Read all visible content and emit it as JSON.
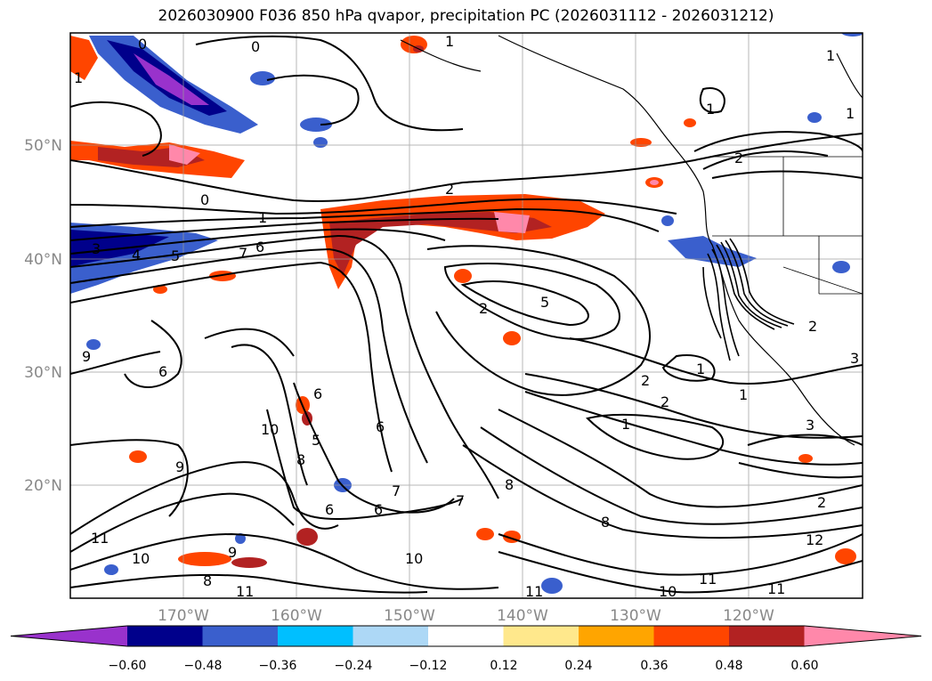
{
  "title": "2026030900 F036 850 hPa qvapor, precipitation PC (2026031112 - 2026031212)",
  "lat_ticks": [
    "50°N",
    "40°N",
    "30°N",
    "20°N"
  ],
  "lon_ticks": [
    "170°W",
    "160°W",
    "150°W",
    "140°W",
    "130°W",
    "120°W"
  ],
  "colorbar": {
    "tick_labels": [
      "−0.60",
      "−0.48",
      "−0.36",
      "−0.24",
      "−0.12",
      "0.12",
      "0.24",
      "0.36",
      "0.48",
      "0.60"
    ],
    "colors": [
      "#9932cc",
      "#00008b",
      "#3a5fcd",
      "#00bfff",
      "#add8f6",
      "#ffffff",
      "#ffe88c",
      "#ffa500",
      "#ff4500",
      "#b22222",
      "#ff88aa"
    ]
  },
  "contour_labels": [
    "0",
    "0",
    "0",
    "1",
    "1",
    "1",
    "1",
    "2",
    "1",
    "2",
    "1",
    "3",
    "4",
    "5",
    "6",
    "7",
    "2",
    "5",
    "1",
    "2",
    "1",
    "2",
    "1",
    "3",
    "9",
    "6",
    "10",
    "6",
    "6",
    "5",
    "9",
    "8",
    "7",
    "7",
    "6",
    "6",
    "8",
    "8",
    "11",
    "10",
    "8",
    "9",
    "10",
    "11",
    "11",
    "10",
    "11",
    "11",
    "12",
    "2",
    "2",
    "3"
  ]
}
